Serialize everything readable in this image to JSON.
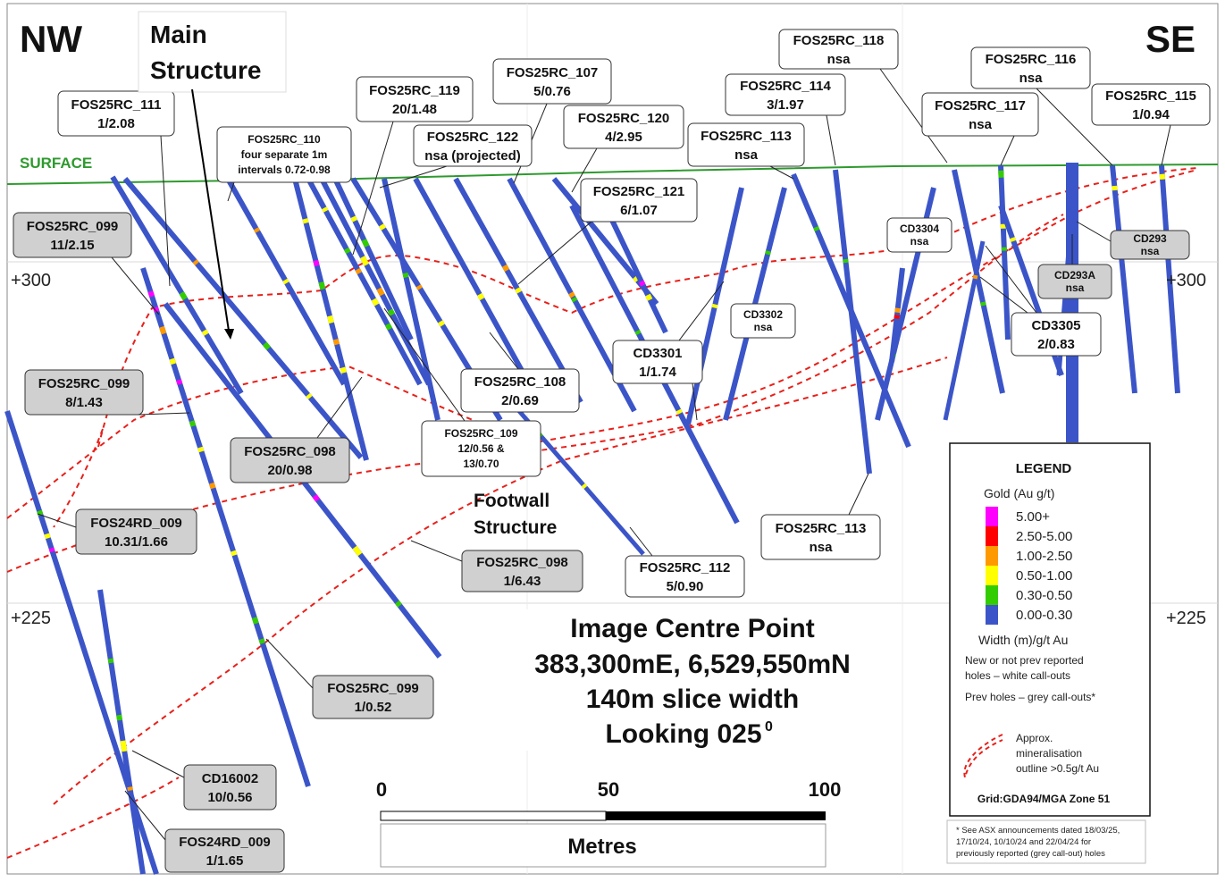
{
  "orientation": {
    "left": "NW",
    "right": "SE"
  },
  "main_structure": {
    "line1": "Main",
    "line2": "Structure"
  },
  "surface_label": "SURFACE",
  "elevations": {
    "upper": "+300",
    "lower": "+225"
  },
  "footwall": {
    "line1": "Footwall",
    "line2": "Structure"
  },
  "centre_point": {
    "line1": "Image Centre Point",
    "line2": "383,300mE, 6,529,550mN",
    "line3": "140m slice width",
    "line4": "Looking 025",
    "line4_sup": "0"
  },
  "scale": {
    "tick0": "0",
    "tick1": "50",
    "tick2": "100",
    "unit": "Metres"
  },
  "callouts": [
    {
      "id": "fos25rc-111",
      "style": "white",
      "lines": [
        "FOS25RC_111",
        "1/2.08"
      ]
    },
    {
      "id": "fos25rc-110",
      "style": "white",
      "lines": [
        "FOS25RC_110",
        "four separate 1m",
        "intervals 0.72-0.98"
      ]
    },
    {
      "id": "fos25rc-119",
      "style": "white",
      "lines": [
        "FOS25RC_119",
        "20/1.48"
      ]
    },
    {
      "id": "fos25rc-107",
      "style": "white",
      "lines": [
        "FOS25RC_107",
        "5/0.76"
      ]
    },
    {
      "id": "fos25rc-122",
      "style": "white",
      "lines": [
        "FOS25RC_122",
        "nsa (projected)"
      ]
    },
    {
      "id": "fos25rc-120",
      "style": "white",
      "lines": [
        "FOS25RC_120",
        "4/2.95"
      ]
    },
    {
      "id": "fos25rc-121",
      "style": "white",
      "lines": [
        "FOS25RC_121",
        "6/1.07"
      ]
    },
    {
      "id": "fos25rc-118",
      "style": "white",
      "lines": [
        "FOS25RC_118",
        "nsa"
      ]
    },
    {
      "id": "fos25rc-114",
      "style": "white",
      "lines": [
        "FOS25RC_114",
        "3/1.97"
      ]
    },
    {
      "id": "fos25rc-113-top",
      "style": "white",
      "lines": [
        "FOS25RC_113",
        "nsa"
      ]
    },
    {
      "id": "fos25rc-116",
      "style": "white",
      "lines": [
        "FOS25RC_116",
        "nsa"
      ]
    },
    {
      "id": "fos25rc-117",
      "style": "white",
      "lines": [
        "FOS25RC_117",
        "nsa"
      ]
    },
    {
      "id": "fos25rc-115",
      "style": "white",
      "lines": [
        "FOS25RC_115",
        "1/0.94"
      ]
    },
    {
      "id": "fos25rc-099-a",
      "style": "grey",
      "lines": [
        "FOS25RC_099",
        "11/2.15"
      ]
    },
    {
      "id": "fos25rc-099-b",
      "style": "grey",
      "lines": [
        "FOS25RC_099",
        "8/1.43"
      ]
    },
    {
      "id": "fos25rc-098-a",
      "style": "grey",
      "lines": [
        "FOS25RC_098",
        "20/0.98"
      ]
    },
    {
      "id": "fos25rc-108",
      "style": "white",
      "lines": [
        "FOS25RC_108",
        "2/0.69"
      ]
    },
    {
      "id": "fos25rc-109",
      "style": "white",
      "lines": [
        "FOS25RC_109",
        "12/0.56 &",
        "13/0.70"
      ]
    },
    {
      "id": "cd3301",
      "style": "white",
      "lines": [
        "CD3301",
        "1/1.74"
      ]
    },
    {
      "id": "cd3302",
      "style": "white",
      "lines": [
        "CD3302",
        "nsa"
      ]
    },
    {
      "id": "cd3304",
      "style": "white",
      "lines": [
        "CD3304",
        "nsa"
      ]
    },
    {
      "id": "cd293",
      "style": "grey",
      "lines": [
        "CD293",
        "nsa"
      ]
    },
    {
      "id": "cd293a",
      "style": "grey",
      "lines": [
        "CD293A",
        "nsa"
      ]
    },
    {
      "id": "cd3305",
      "style": "white",
      "lines": [
        "CD3305",
        "2/0.83"
      ]
    },
    {
      "id": "fos25rc-113-bottom",
      "style": "white",
      "lines": [
        "FOS25RC_113",
        "nsa"
      ]
    },
    {
      "id": "fos25rc-112",
      "style": "white",
      "lines": [
        "FOS25RC_112",
        "5/0.90"
      ]
    },
    {
      "id": "fos24rd-009-a",
      "style": "grey",
      "lines": [
        "FOS24RD_009",
        "10.31/1.66"
      ]
    },
    {
      "id": "fos25rc-098-b",
      "style": "grey",
      "lines": [
        "FOS25RC_098",
        "1/6.43"
      ]
    },
    {
      "id": "fos25rc-099-c",
      "style": "grey",
      "lines": [
        "FOS25RC_099",
        "1/0.52"
      ]
    },
    {
      "id": "cd16002",
      "style": "grey",
      "lines": [
        "CD16002",
        "10/0.56"
      ]
    },
    {
      "id": "fos24rd-009-b",
      "style": "grey",
      "lines": [
        "FOS24RD_009",
        "1/1.65"
      ]
    }
  ],
  "legend": {
    "title": "LEGEND",
    "subtitle": "Gold (Au g/t)",
    "bins": [
      {
        "label": "5.00+",
        "color": "#ff00ff"
      },
      {
        "label": "2.50-5.00",
        "color": "#ff0000"
      },
      {
        "label": "1.00-2.50",
        "color": "#ff9900"
      },
      {
        "label": "0.50-1.00",
        "color": "#ffff00"
      },
      {
        "label": "0.30-0.50",
        "color": "#33cc00"
      },
      {
        "label": "0.00-0.30",
        "color": "#3b55c8"
      }
    ],
    "width_label": "Width (m)/g/t Au",
    "new_holes_1": "New or not prev reported",
    "new_holes_2": "holes – white call-outs",
    "prev_holes": "Prev holes – grey call-outs*",
    "approx_1": "Approx.",
    "approx_2": "mineralisation",
    "approx_3": "outline >0.5g/t Au",
    "grid": "Grid:GDA94/MGA Zone 51"
  },
  "footnote": {
    "line1": "* See ASX announcements dated 18/03/25,",
    "line2": "17/10/24, 10/10/24 and 22/04/24 for",
    "line3": "previously reported (grey call-out) holes"
  },
  "colors": {
    "hole": "#3b55c8",
    "surface": "#2e9a2e",
    "outline": "#e8201a",
    "grey_callout": "#d0d0d0",
    "gridline": "#d8d8d8"
  }
}
